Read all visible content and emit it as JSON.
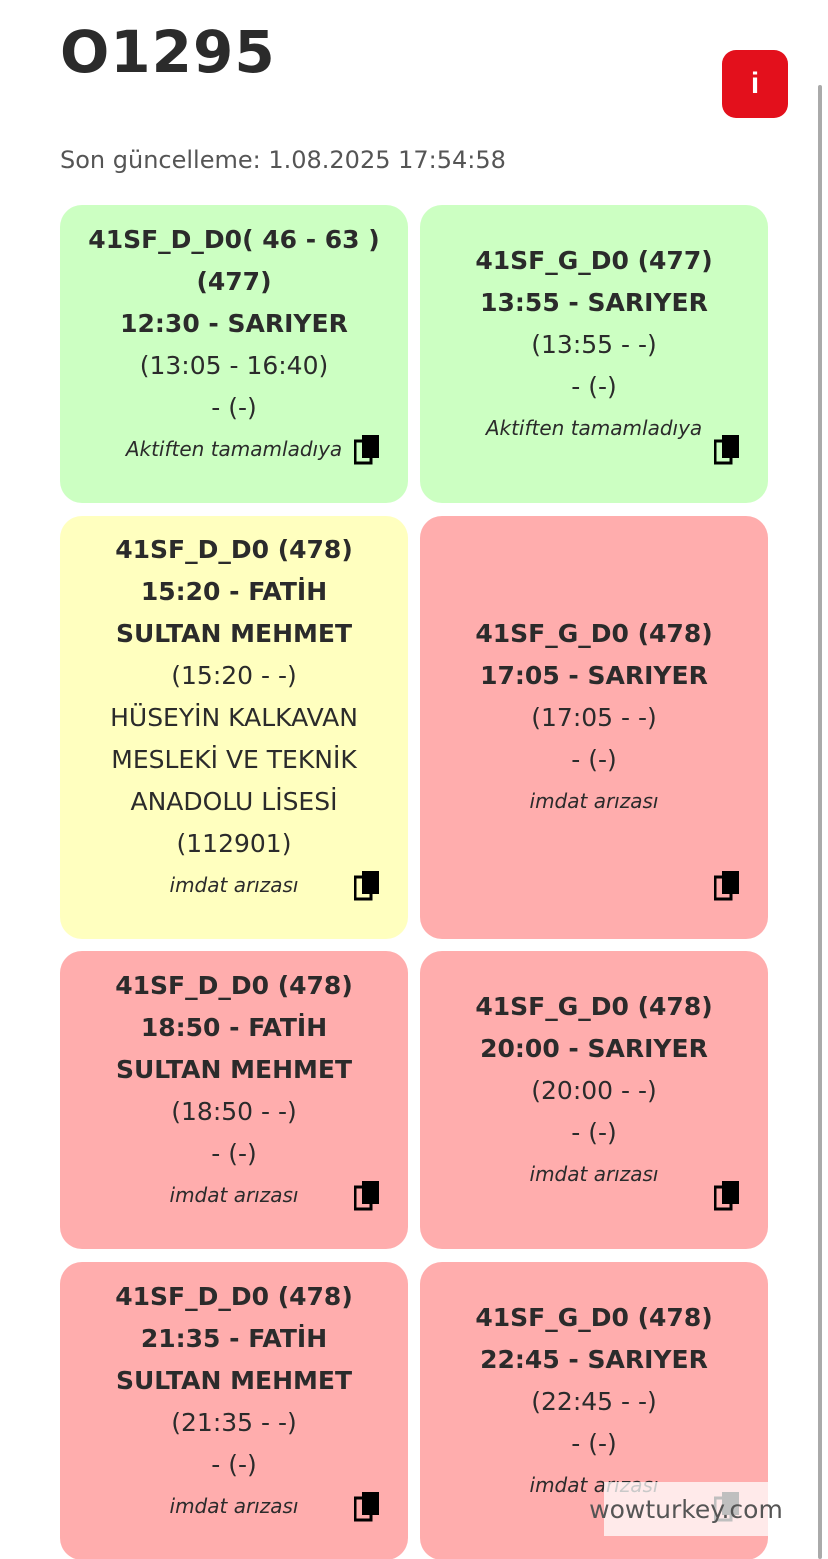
{
  "header": {
    "title": "O1295",
    "info_button": "i",
    "last_update": "Son güncelleme: 1.08.2025 17:54:58"
  },
  "cards": [
    {
      "status": "green",
      "title": "41SF_D_D0( 46 - 63 ) (477)",
      "departure": "12:30 - SARIYER",
      "times": "(13:05 - 16:40)",
      "detail": "- (-)",
      "note": "Aktiften tamamladıya"
    },
    {
      "status": "green",
      "title": "41SF_G_D0 (477)",
      "departure": "13:55 - SARIYER",
      "times": "(13:55 - -)",
      "detail": "- (-)",
      "note": "Aktiften tamamladıya"
    },
    {
      "status": "yellow",
      "title": "41SF_D_D0 (478)",
      "departure": "15:20 - FATİH SULTAN MEHMET",
      "times": "(15:20 - -)",
      "detail": "HÜSEYİN KALKAVAN MESLEKİ VE TEKNİK ANADOLU LİSESİ (112901)",
      "note": "imdat arızası"
    },
    {
      "status": "red",
      "title": "41SF_G_D0 (478)",
      "departure": "17:05 - SARIYER",
      "times": "(17:05 - -)",
      "detail": "- (-)",
      "note": "imdat arızası"
    },
    {
      "status": "red",
      "title": "41SF_D_D0 (478)",
      "departure": "18:50 - FATİH SULTAN MEHMET",
      "times": "(18:50 - -)",
      "detail": "- (-)",
      "note": "imdat arızası"
    },
    {
      "status": "red",
      "title": "41SF_G_D0 (478)",
      "departure": "20:00 - SARIYER",
      "times": "(20:00 - -)",
      "detail": "- (-)",
      "note": "imdat arızası"
    },
    {
      "status": "red",
      "title": "41SF_D_D0 (478)",
      "departure": "21:35 - FATİH SULTAN MEHMET",
      "times": "(21:35 - -)",
      "detail": "- (-)",
      "note": "imdat arızası"
    },
    {
      "status": "red",
      "title": "41SF_G_D0 (478)",
      "departure": "22:45 - SARIYER",
      "times": "(22:45 - -)",
      "detail": "- (-)",
      "note": "imdat arızası"
    }
  ],
  "watermark": "wowturkey.com"
}
